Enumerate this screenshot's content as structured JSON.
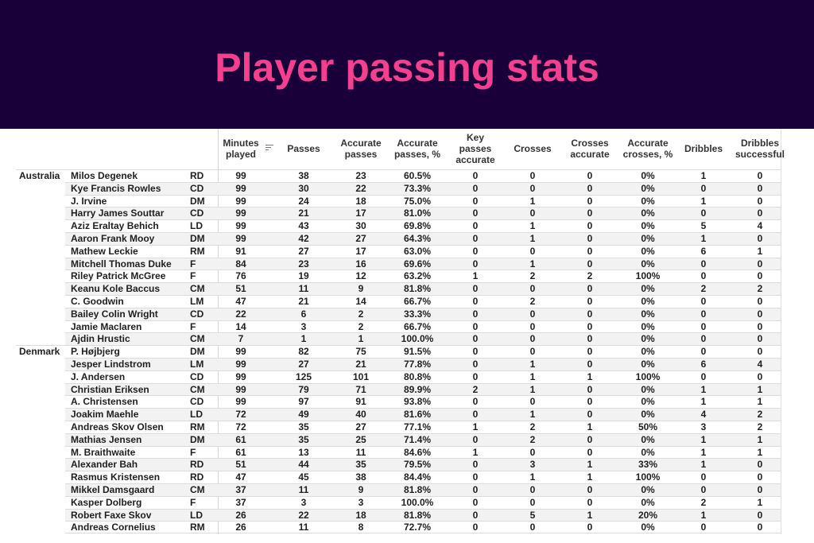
{
  "banner": {
    "title": "Player passing stats",
    "bg_color": "#1a0038",
    "title_color": "#f53f8f"
  },
  "table": {
    "columns": [
      "Minutes played",
      "Passes",
      "Accurate passes",
      "Accurate passes, %",
      "Key passes accurate",
      "Crosses",
      "Crosses accurate",
      "Accurate crosses, %",
      "Dribbles",
      "Dribbles successful"
    ],
    "sort_icon": "sort-descending-icon",
    "sorted_column": "Minutes played",
    "groups": [
      {
        "country": "Australia",
        "players": [
          {
            "name": "Milos Degenek",
            "pos": "RD",
            "stats": [
              "99",
              "38",
              "23",
              "60.5%",
              "0",
              "0",
              "0",
              "0%",
              "1",
              "0"
            ]
          },
          {
            "name": "Kye Francis Rowles",
            "pos": "CD",
            "stats": [
              "99",
              "30",
              "22",
              "73.3%",
              "0",
              "0",
              "0",
              "0%",
              "0",
              "0"
            ]
          },
          {
            "name": "J. Irvine",
            "pos": "DM",
            "stats": [
              "99",
              "24",
              "18",
              "75.0%",
              "0",
              "1",
              "0",
              "0%",
              "1",
              "0"
            ]
          },
          {
            "name": "Harry James Souttar",
            "pos": "CD",
            "stats": [
              "99",
              "21",
              "17",
              "81.0%",
              "0",
              "0",
              "0",
              "0%",
              "0",
              "0"
            ]
          },
          {
            "name": "Aziz Eraltay Behich",
            "pos": "LD",
            "stats": [
              "99",
              "43",
              "30",
              "69.8%",
              "0",
              "1",
              "0",
              "0%",
              "5",
              "4"
            ]
          },
          {
            "name": "Aaron Frank Mooy",
            "pos": "DM",
            "stats": [
              "99",
              "42",
              "27",
              "64.3%",
              "0",
              "1",
              "0",
              "0%",
              "1",
              "0"
            ]
          },
          {
            "name": "Mathew Leckie",
            "pos": "RM",
            "stats": [
              "91",
              "27",
              "17",
              "63.0%",
              "0",
              "0",
              "0",
              "0%",
              "6",
              "1"
            ]
          },
          {
            "name": "Mitchell Thomas Duke",
            "pos": "F",
            "stats": [
              "84",
              "23",
              "16",
              "69.6%",
              "0",
              "1",
              "0",
              "0%",
              "0",
              "0"
            ]
          },
          {
            "name": "Riley Patrick McGree",
            "pos": "F",
            "stats": [
              "76",
              "19",
              "12",
              "63.2%",
              "1",
              "2",
              "2",
              "100%",
              "0",
              "0"
            ]
          },
          {
            "name": "Keanu Kole Baccus",
            "pos": "CM",
            "stats": [
              "51",
              "11",
              "9",
              "81.8%",
              "0",
              "0",
              "0",
              "0%",
              "2",
              "2"
            ]
          },
          {
            "name": "C. Goodwin",
            "pos": "LM",
            "stats": [
              "47",
              "21",
              "14",
              "66.7%",
              "0",
              "2",
              "0",
              "0%",
              "0",
              "0"
            ]
          },
          {
            "name": "Bailey Colin Wright",
            "pos": "CD",
            "stats": [
              "22",
              "6",
              "2",
              "33.3%",
              "0",
              "0",
              "0",
              "0%",
              "0",
              "0"
            ]
          },
          {
            "name": "Jamie Maclaren",
            "pos": "F",
            "stats": [
              "14",
              "3",
              "2",
              "66.7%",
              "0",
              "0",
              "0",
              "0%",
              "0",
              "0"
            ]
          },
          {
            "name": "Ajdin Hrustic",
            "pos": "CM",
            "stats": [
              "7",
              "1",
              "1",
              "100.0%",
              "0",
              "0",
              "0",
              "0%",
              "0",
              "0"
            ]
          }
        ]
      },
      {
        "country": "Denmark",
        "players": [
          {
            "name": "P. Højbjerg",
            "pos": "DM",
            "stats": [
              "99",
              "82",
              "75",
              "91.5%",
              "0",
              "0",
              "0",
              "0%",
              "0",
              "0"
            ]
          },
          {
            "name": "Jesper Lindstrom",
            "pos": "LM",
            "stats": [
              "99",
              "27",
              "21",
              "77.8%",
              "0",
              "1",
              "0",
              "0%",
              "6",
              "4"
            ]
          },
          {
            "name": "J. Andersen",
            "pos": "CD",
            "stats": [
              "99",
              "125",
              "101",
              "80.8%",
              "0",
              "1",
              "1",
              "100%",
              "0",
              "0"
            ]
          },
          {
            "name": "Christian Eriksen",
            "pos": "CM",
            "stats": [
              "99",
              "79",
              "71",
              "89.9%",
              "2",
              "1",
              "0",
              "0%",
              "1",
              "1"
            ]
          },
          {
            "name": "A. Christensen",
            "pos": "CD",
            "stats": [
              "99",
              "97",
              "91",
              "93.8%",
              "0",
              "0",
              "0",
              "0%",
              "1",
              "1"
            ]
          },
          {
            "name": "Joakim Maehle",
            "pos": "LD",
            "stats": [
              "72",
              "49",
              "40",
              "81.6%",
              "0",
              "1",
              "0",
              "0%",
              "4",
              "2"
            ]
          },
          {
            "name": "Andreas Skov Olsen",
            "pos": "RM",
            "stats": [
              "72",
              "35",
              "27",
              "77.1%",
              "1",
              "2",
              "1",
              "50%",
              "3",
              "2"
            ]
          },
          {
            "name": "Mathias Jensen",
            "pos": "DM",
            "stats": [
              "61",
              "35",
              "25",
              "71.4%",
              "0",
              "2",
              "0",
              "0%",
              "1",
              "1"
            ]
          },
          {
            "name": "M. Braithwaite",
            "pos": "F",
            "stats": [
              "61",
              "13",
              "11",
              "84.6%",
              "1",
              "0",
              "0",
              "0%",
              "1",
              "1"
            ]
          },
          {
            "name": "Alexander Bah",
            "pos": "RD",
            "stats": [
              "51",
              "44",
              "35",
              "79.5%",
              "0",
              "3",
              "1",
              "33%",
              "1",
              "0"
            ]
          },
          {
            "name": "Rasmus Kristensen",
            "pos": "RD",
            "stats": [
              "47",
              "45",
              "38",
              "84.4%",
              "0",
              "1",
              "1",
              "100%",
              "0",
              "0"
            ]
          },
          {
            "name": "Mikkel Damsgaard",
            "pos": "CM",
            "stats": [
              "37",
              "11",
              "9",
              "81.8%",
              "0",
              "0",
              "0",
              "0%",
              "0",
              "0"
            ]
          },
          {
            "name": "Kasper Dolberg",
            "pos": "F",
            "stats": [
              "37",
              "3",
              "3",
              "100.0%",
              "0",
              "0",
              "0",
              "0%",
              "2",
              "1"
            ]
          },
          {
            "name": "Robert Faxe Skov",
            "pos": "LD",
            "stats": [
              "26",
              "22",
              "18",
              "81.8%",
              "0",
              "5",
              "1",
              "20%",
              "1",
              "0"
            ]
          },
          {
            "name": "Andreas Cornelius",
            "pos": "RM",
            "stats": [
              "26",
              "11",
              "8",
              "72.7%",
              "0",
              "0",
              "0",
              "0%",
              "0",
              "0"
            ]
          }
        ]
      }
    ]
  }
}
